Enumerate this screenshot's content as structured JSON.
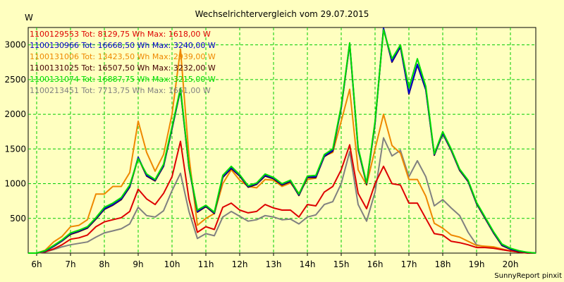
{
  "chart_data": {
    "type": "line",
    "title": "Wechselrichtervergleich vom 29.07.2015",
    "ylabel": "W",
    "xlabel": "",
    "credit": "SunnyReport pinxit",
    "x_range": [
      5.75,
      20.75
    ],
    "ylim": [
      0,
      3250
    ],
    "yticks": [
      500,
      1000,
      1500,
      2000,
      2500,
      3000
    ],
    "xticks": [
      "6h",
      "7h",
      "8h",
      "9h",
      "10h",
      "11h",
      "12h",
      "13h",
      "14h",
      "15h",
      "16h",
      "17h",
      "18h",
      "19h",
      "20h"
    ],
    "xtick_values": [
      6,
      7,
      8,
      9,
      10,
      11,
      12,
      13,
      14,
      15,
      16,
      17,
      18,
      19,
      20
    ],
    "grid": true,
    "legend_position": "top-left",
    "times": [
      5.75,
      6.0,
      6.25,
      6.5,
      6.75,
      7.0,
      7.25,
      7.5,
      7.75,
      8.0,
      8.25,
      8.5,
      8.75,
      9.0,
      9.25,
      9.5,
      9.75,
      10.0,
      10.25,
      10.5,
      10.75,
      11.0,
      11.25,
      11.5,
      11.75,
      12.0,
      12.25,
      12.5,
      12.75,
      13.0,
      13.25,
      13.5,
      13.75,
      14.0,
      14.25,
      14.5,
      14.75,
      15.0,
      15.25,
      15.5,
      15.75,
      16.0,
      16.25,
      16.5,
      16.75,
      17.0,
      17.25,
      17.5,
      17.75,
      18.0,
      18.25,
      18.5,
      18.75,
      19.0,
      19.25,
      19.5,
      19.75,
      20.0,
      20.25,
      20.5,
      20.75
    ],
    "series": [
      {
        "name": "1100129553",
        "label": "1100129553 Tot: 8129,75 Wh Max: 1618,00 W",
        "color": "#dd0000",
        "values": [
          0,
          0,
          20,
          60,
          120,
          200,
          220,
          260,
          380,
          450,
          480,
          510,
          600,
          920,
          780,
          700,
          860,
          1100,
          1610,
          780,
          300,
          380,
          340,
          660,
          720,
          620,
          580,
          600,
          700,
          650,
          620,
          620,
          520,
          700,
          680,
          880,
          960,
          1200,
          1560,
          860,
          640,
          1000,
          1250,
          1000,
          980,
          720,
          720,
          500,
          280,
          260,
          170,
          150,
          120,
          80,
          80,
          70,
          50,
          30,
          15,
          0,
          0
        ]
      },
      {
        "name": "1100130966",
        "label": "1100130966 Tot: 16668,50 Wh Max: 3240,00 W",
        "color": "#0000cc",
        "values": [
          0,
          0,
          30,
          100,
          180,
          280,
          320,
          370,
          500,
          640,
          700,
          780,
          960,
          1380,
          1120,
          1050,
          1260,
          1800,
          2360,
          1240,
          600,
          680,
          580,
          1100,
          1230,
          1120,
          960,
          1000,
          1120,
          1080,
          990,
          1040,
          840,
          1100,
          1100,
          1400,
          1480,
          2100,
          3020,
          1500,
          1000,
          1880,
          3240,
          2760,
          2980,
          2300,
          2720,
          2360,
          1420,
          1730,
          1490,
          1200,
          1040,
          720,
          510,
          300,
          120,
          60,
          30,
          10,
          0
        ]
      },
      {
        "name": "1100131006",
        "label": "1100131006 Tot: 13423,50 Wh Max: 2939,00 W",
        "color": "#ee8800",
        "values": [
          0,
          0,
          40,
          160,
          240,
          380,
          400,
          480,
          850,
          850,
          960,
          960,
          1160,
          1900,
          1450,
          1180,
          1420,
          2000,
          2939,
          1400,
          400,
          500,
          570,
          1000,
          1200,
          1050,
          960,
          940,
          1060,
          1050,
          960,
          1010,
          860,
          1060,
          1080,
          1400,
          1450,
          1900,
          2360,
          1200,
          980,
          1500,
          2000,
          1550,
          1440,
          1060,
          1060,
          820,
          430,
          360,
          260,
          230,
          170,
          110,
          100,
          90,
          60,
          30,
          15,
          5,
          0
        ]
      },
      {
        "name": "1100131025",
        "label": "1100131025 Tot: 16507,50 Wh Max: 3232,00 W",
        "color": "#440000",
        "values": [
          0,
          0,
          28,
          95,
          175,
          270,
          310,
          360,
          490,
          630,
          690,
          770,
          950,
          1370,
          1110,
          1040,
          1250,
          1790,
          2350,
          1230,
          590,
          670,
          570,
          1090,
          1220,
          1110,
          950,
          990,
          1110,
          1070,
          980,
          1030,
          830,
          1090,
          1090,
          1390,
          1470,
          2090,
          3010,
          1490,
          990,
          1870,
          3232,
          2750,
          2970,
          2290,
          2710,
          2350,
          1410,
          1720,
          1480,
          1190,
          1030,
          710,
          500,
          290,
          110,
          55,
          25,
          8,
          0
        ]
      },
      {
        "name": "1100131074",
        "label": "1100131074 Tot: 16887,75 Wh Max: 3215,00 W",
        "color": "#00dd00",
        "values": [
          0,
          0,
          35,
          110,
          190,
          290,
          330,
          380,
          510,
          660,
          720,
          800,
          980,
          1360,
          1140,
          1060,
          1280,
          1820,
          2380,
          1250,
          620,
          690,
          590,
          1120,
          1250,
          1130,
          970,
          1010,
          1140,
          1090,
          1000,
          1050,
          850,
          1110,
          1120,
          1420,
          1500,
          2120,
          3030,
          1520,
          1010,
          1900,
          3215,
          2800,
          3000,
          2380,
          2800,
          2400,
          1430,
          1750,
          1500,
          1210,
          1050,
          730,
          520,
          310,
          130,
          70,
          35,
          12,
          0
        ]
      },
      {
        "name": "1100213451",
        "label": "1100213451 Tot: 7713,75 Wh Max: 1661,00 W",
        "color": "#808080",
        "values": [
          0,
          0,
          15,
          50,
          90,
          120,
          140,
          160,
          230,
          290,
          320,
          350,
          420,
          660,
          540,
          520,
          610,
          900,
          1150,
          600,
          210,
          280,
          250,
          520,
          600,
          530,
          460,
          480,
          540,
          520,
          480,
          490,
          420,
          520,
          550,
          700,
          740,
          1000,
          1460,
          700,
          460,
          880,
          1661,
          1400,
          1480,
          1100,
          1330,
          1100,
          680,
          770,
          650,
          540,
          300,
          120,
          90,
          80,
          50,
          30,
          15,
          5,
          0
        ]
      }
    ]
  }
}
